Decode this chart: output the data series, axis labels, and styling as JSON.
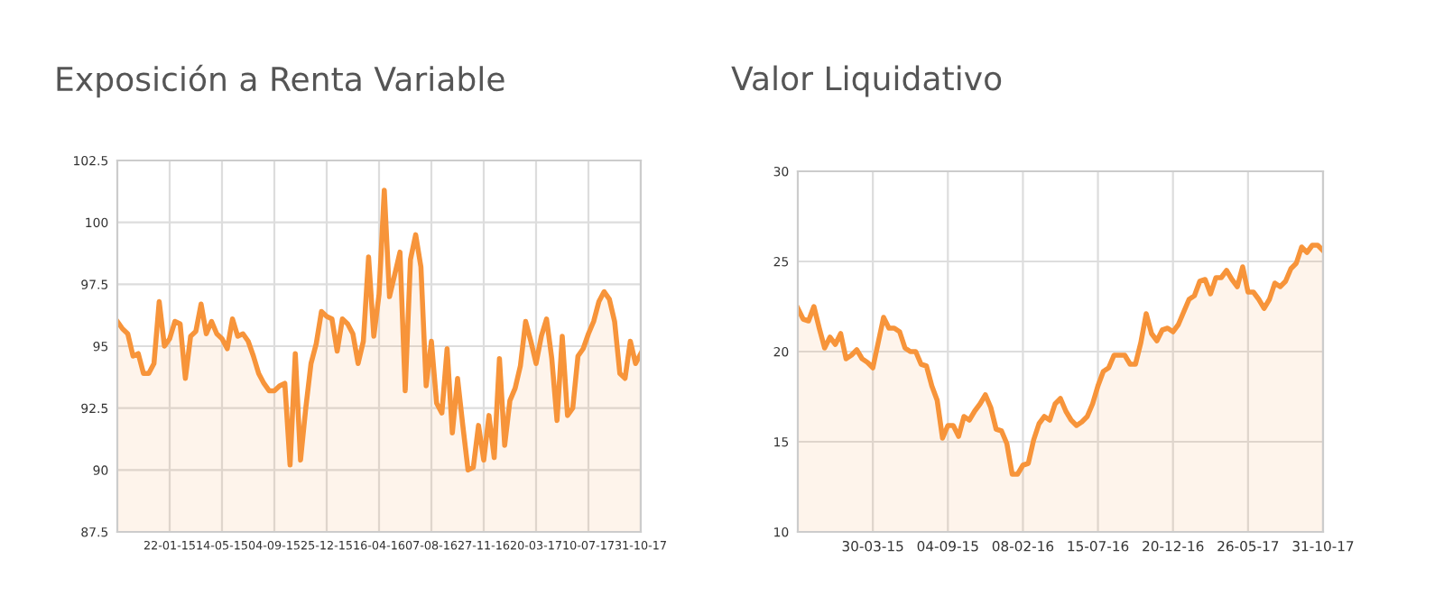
{
  "chart_data": [
    {
      "type": "area",
      "title": "Exposición a Renta Variable",
      "color": "#f7943a",
      "grid": true,
      "categories": [
        null,
        null,
        null,
        null,
        null,
        null,
        null,
        null,
        null,
        null,
        "22-01-15",
        null,
        null,
        null,
        null,
        null,
        null,
        null,
        null,
        null,
        "14-05-15",
        null,
        null,
        null,
        null,
        null,
        null,
        null,
        null,
        null,
        "04-09-15",
        null,
        null,
        null,
        null,
        null,
        null,
        null,
        null,
        null,
        "25-12-15",
        null,
        null,
        null,
        null,
        null,
        null,
        null,
        null,
        null,
        "16-04-16",
        null,
        null,
        null,
        null,
        null,
        null,
        null,
        null,
        null,
        "07-08-16",
        null,
        null,
        null,
        null,
        null,
        null,
        null,
        null,
        null,
        "27-11-16",
        null,
        null,
        null,
        null,
        null,
        null,
        null,
        null,
        null,
        "20-03-17",
        null,
        null,
        null,
        null,
        null,
        null,
        null,
        null,
        null,
        "10-07-17",
        null,
        null,
        null,
        null,
        null,
        null,
        null,
        null,
        null,
        "31-10-17"
      ],
      "values": [
        96.0,
        95.7,
        95.5,
        94.6,
        94.7,
        93.9,
        93.9,
        94.3,
        96.8,
        95.0,
        95.3,
        96.0,
        95.9,
        93.7,
        95.4,
        95.6,
        96.7,
        95.5,
        96.0,
        95.5,
        95.3,
        94.9,
        96.1,
        95.4,
        95.5,
        95.2,
        94.6,
        93.9,
        93.5,
        93.2,
        93.2,
        93.4,
        93.5,
        90.2,
        94.7,
        90.4,
        92.5,
        94.3,
        95.1,
        96.4,
        96.2,
        96.1,
        94.8,
        96.1,
        95.9,
        95.5,
        94.3,
        95.2,
        98.6,
        95.4,
        97.1,
        101.3,
        97.0,
        97.9,
        98.8,
        93.2,
        98.5,
        99.5,
        98.2,
        93.4,
        95.2,
        92.7,
        92.3,
        94.9,
        91.5,
        93.7,
        91.8,
        90.0,
        90.1,
        91.8,
        90.4,
        92.2,
        90.5,
        94.5,
        91.0,
        92.8,
        93.3,
        94.2,
        96.0,
        95.2,
        94.3,
        95.4,
        96.1,
        94.5,
        92.0,
        95.4,
        92.2,
        92.5,
        94.6,
        94.9,
        95.5,
        96.0,
        96.8,
        97.2,
        96.9,
        96.0,
        93.9,
        93.7,
        95.2,
        94.3,
        94.7
      ],
      "ylim": [
        87.5,
        102.5
      ],
      "yticks": [
        87.5,
        90,
        92.5,
        95,
        97.5,
        100,
        102.5
      ]
    },
    {
      "type": "area",
      "title": "Valor Liquidativo",
      "color": "#f7943a",
      "grid": true,
      "categories": [
        null,
        null,
        null,
        null,
        null,
        null,
        null,
        null,
        null,
        null,
        null,
        null,
        null,
        null,
        "30-03-15",
        null,
        null,
        null,
        null,
        null,
        null,
        null,
        null,
        null,
        null,
        null,
        null,
        null,
        "04-09-15",
        null,
        null,
        null,
        null,
        null,
        null,
        null,
        null,
        null,
        null,
        null,
        null,
        null,
        "08-02-16",
        null,
        null,
        null,
        null,
        null,
        null,
        null,
        null,
        null,
        null,
        null,
        null,
        null,
        "15-07-16",
        null,
        null,
        null,
        null,
        null,
        null,
        null,
        null,
        null,
        null,
        null,
        null,
        null,
        "20-12-16",
        null,
        null,
        null,
        null,
        null,
        null,
        null,
        null,
        null,
        null,
        null,
        null,
        null,
        "26-05-17",
        null,
        null,
        null,
        null,
        null,
        null,
        null,
        null,
        null,
        null,
        null,
        null,
        null,
        "31-10-17"
      ],
      "values": [
        22.4,
        21.8,
        21.7,
        22.5,
        21.3,
        20.2,
        20.8,
        20.4,
        21.0,
        19.6,
        19.8,
        20.1,
        19.6,
        19.4,
        19.1,
        20.5,
        21.9,
        21.3,
        21.3,
        21.1,
        20.2,
        20.0,
        20.0,
        19.3,
        19.2,
        18.1,
        17.3,
        15.2,
        15.9,
        15.9,
        15.3,
        16.4,
        16.2,
        16.7,
        17.1,
        17.6,
        16.9,
        15.7,
        15.6,
        14.9,
        13.2,
        13.2,
        13.7,
        13.8,
        15.1,
        16.0,
        16.4,
        16.2,
        17.1,
        17.4,
        16.7,
        16.2,
        15.9,
        16.1,
        16.4,
        17.1,
        18.1,
        18.9,
        19.1,
        19.8,
        19.8,
        19.8,
        19.3,
        19.3,
        20.5,
        22.1,
        21.0,
        20.6,
        21.2,
        21.3,
        21.1,
        21.5,
        22.2,
        22.9,
        23.1,
        23.9,
        24.0,
        23.2,
        24.1,
        24.1,
        24.5,
        24.0,
        23.6,
        24.7,
        23.3,
        23.3,
        22.9,
        22.4,
        22.9,
        23.8,
        23.6,
        23.9,
        24.6,
        24.9,
        25.8,
        25.5,
        25.9,
        25.9,
        25.6
      ],
      "ylim": [
        10,
        30
      ],
      "yticks": [
        10,
        15,
        20,
        25,
        30
      ]
    }
  ]
}
